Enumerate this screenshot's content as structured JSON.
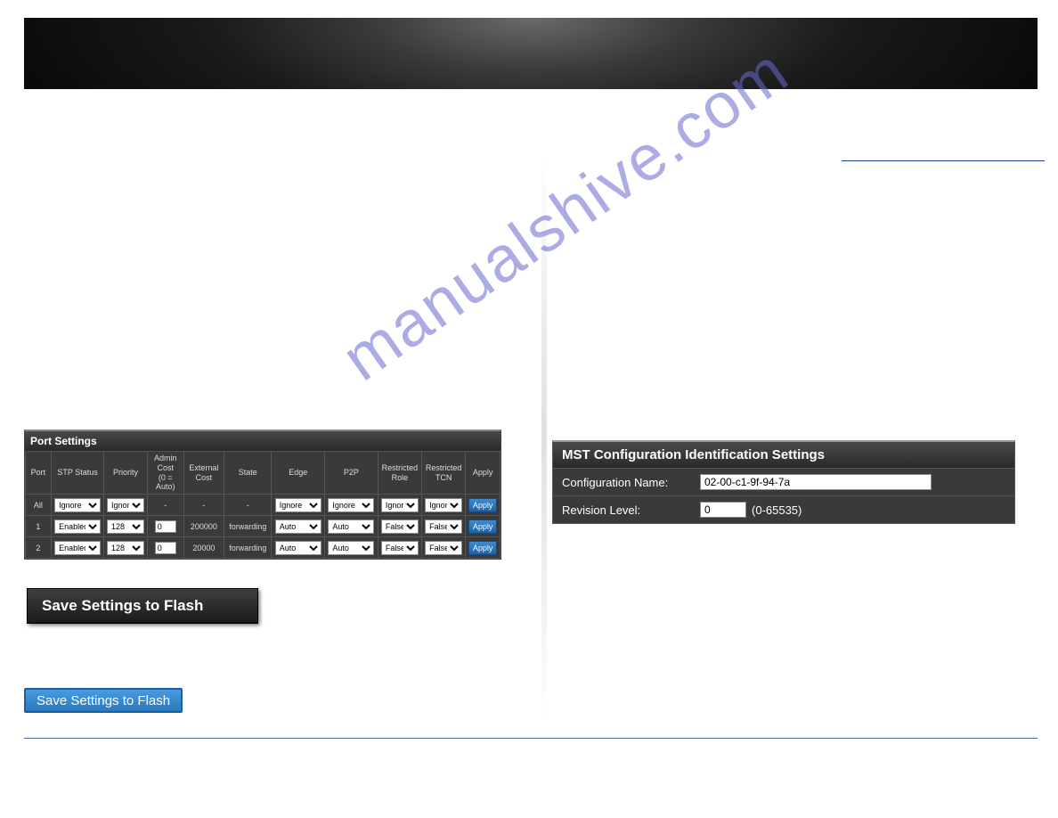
{
  "watermark": "manualshive.com",
  "port_settings": {
    "title": "Port Settings",
    "columns": [
      "Port",
      "STP Status",
      "Priority",
      "Admin Cost (0 = Auto)",
      "External Cost",
      "State",
      "Edge",
      "P2P",
      "Restricted Role",
      "Restricted TCN",
      "Apply"
    ],
    "col_widths": [
      "28px",
      "58px",
      "46px",
      "40px",
      "44px",
      "52px",
      "58px",
      "58px",
      "48px",
      "48px",
      "36px"
    ],
    "rows": [
      {
        "port": "All",
        "stp": "Ignore",
        "priority": "Ignore",
        "admin_cost": "-",
        "ext_cost": "-",
        "state": "-",
        "edge": "Ignore",
        "p2p": "Ignore",
        "rrole": "Ignore",
        "rtcn": "Ignore",
        "apply": "Apply"
      },
      {
        "port": "1",
        "stp": "Enabled",
        "priority": "128",
        "admin_cost": "0",
        "ext_cost": "200000",
        "state": "forwarding",
        "edge": "Auto",
        "p2p": "Auto",
        "rrole": "False",
        "rtcn": "False",
        "apply": "Apply"
      },
      {
        "port": "2",
        "stp": "Enabled",
        "priority": "128",
        "admin_cost": "0",
        "ext_cost": "20000",
        "state": "forwarding",
        "edge": "Auto",
        "p2p": "Auto",
        "rrole": "False",
        "rtcn": "False",
        "apply": "Apply"
      }
    ]
  },
  "save_dark_label": "Save Settings to Flash",
  "save_blue_label": "Save Settings to Flash",
  "mst": {
    "title": "MST Configuration Identification Settings",
    "config_label": "Configuration Name:",
    "config_value": "02-00-c1-9f-94-7a",
    "rev_label": "Revision Level:",
    "rev_value": "0",
    "rev_hint": "(0-65535)"
  },
  "colors": {
    "panel_bg": "#3a3a3a",
    "panel_border": "#555555",
    "header_grad_top": "#4a4a4a",
    "header_grad_bot": "#2a2a2a",
    "apply_btn_top": "#3a8ad0",
    "apply_btn_bot": "#2060a0",
    "save_blue_top": "#4a9ae0",
    "save_blue_bot": "#2a7ac0",
    "underline": "#1a3a8a",
    "hr": "#4a6aaa",
    "watermark": "#6a6ad0"
  }
}
